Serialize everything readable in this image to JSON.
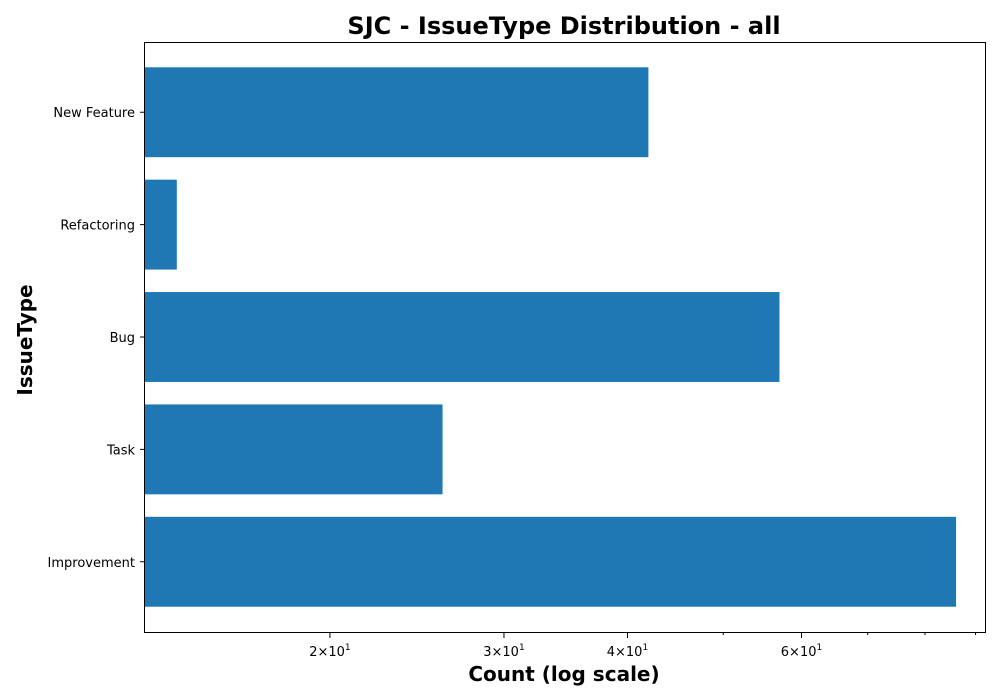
{
  "chart_data": {
    "type": "bar",
    "orientation": "horizontal",
    "title": "SJC - IssueType Distribution - all",
    "xlabel": "Count (log scale)",
    "ylabel": "IssueType",
    "x_scale": "log",
    "xlim": [
      13,
      92
    ],
    "categories": [
      "Improvement",
      "Task",
      "Bug",
      "Refactoring",
      "New Feature"
    ],
    "values": [
      86,
      26,
      57,
      14,
      42
    ],
    "bar_color": "#1f77b4",
    "x_ticks": [
      {
        "value": 20,
        "base": "2",
        "mult": "×10",
        "exp": "1"
      },
      {
        "value": 30,
        "base": "3",
        "mult": "×10",
        "exp": "1"
      },
      {
        "value": 40,
        "base": "4",
        "mult": "×10",
        "exp": "1"
      },
      {
        "value": 60,
        "base": "6",
        "mult": "×10",
        "exp": "1"
      }
    ],
    "x_minor_ticks": [
      50,
      70,
      80,
      90
    ],
    "grid": false,
    "legend": "none"
  }
}
